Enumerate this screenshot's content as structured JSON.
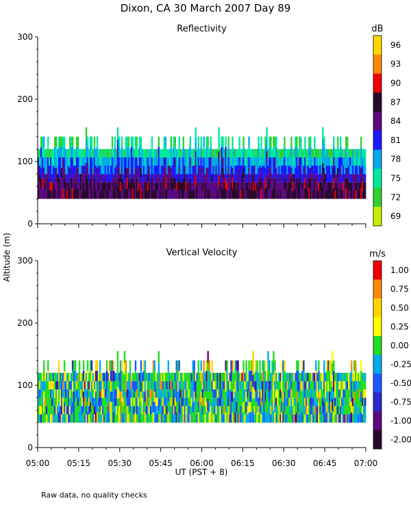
{
  "figure": {
    "title": "Dixon, CA 30 March 2007  Day  89",
    "ylabel": "Altitude (m)",
    "xlabel": "UT  (PST + 8)",
    "footnote": "Raw data, no quality checks"
  },
  "chart_data": [
    {
      "type": "heatmap",
      "title": "Reflectivity",
      "ylabel": "Altitude (m)",
      "xlabel": "",
      "xlim": [
        "05:00",
        "07:00"
      ],
      "ylim": [
        0,
        300
      ],
      "y_ticks": [
        0,
        100,
        200,
        300
      ],
      "x_tick_labels": [],
      "data_extent": {
        "altitude_min": 40,
        "altitude_typical_top": 120,
        "altitude_max": 160
      },
      "colorbar": {
        "unit": "dB",
        "ticks": [
          "96",
          "93",
          "90",
          "87",
          "84",
          "81",
          "78",
          "75",
          "72",
          "69"
        ],
        "colors": [
          "#ffd700",
          "#ff8c00",
          "#ee0000",
          "#2a0a2a",
          "#5a0a80",
          "#1a1aff",
          "#00aaee",
          "#00e8a0",
          "#30d030",
          "#c8f000"
        ]
      }
    },
    {
      "type": "heatmap",
      "title": "Vertical Velocity",
      "ylabel": "Altitude (m)",
      "xlabel": "UT  (PST + 8)",
      "xlim": [
        "05:00",
        "07:00"
      ],
      "ylim": [
        0,
        300
      ],
      "y_ticks": [
        0,
        100,
        200,
        300
      ],
      "x_tick_labels": [
        "05:00",
        "05:15",
        "05:30",
        "05:45",
        "06:00",
        "06:15",
        "06:30",
        "06:45",
        "07:00"
      ],
      "data_extent": {
        "altitude_min": 40,
        "altitude_typical_top": 120,
        "altitude_max": 160
      },
      "colorbar": {
        "unit": "m/s",
        "ticks": [
          "1.00",
          "0.75",
          "0.50",
          "0.25",
          "0.00",
          "-0.25",
          "-0.50",
          "-0.75",
          "-1.00",
          "-2.00"
        ],
        "colors": [
          "#ee0000",
          "#ff8c00",
          "#ffd700",
          "#ffff00",
          "#22dd22",
          "#00aaee",
          "#1a5aff",
          "#2a2ad0",
          "#5a0a80",
          "#2a0a2a"
        ]
      }
    }
  ]
}
